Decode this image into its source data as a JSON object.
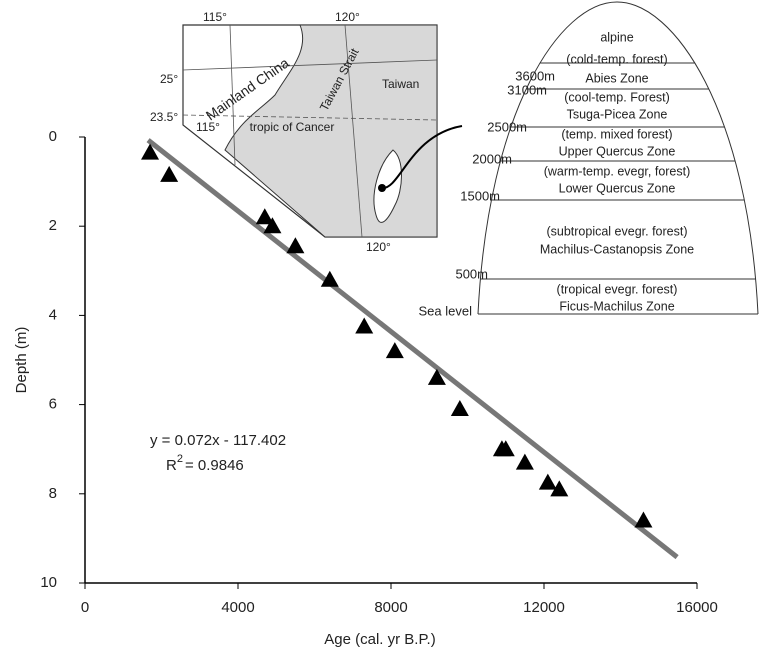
{
  "chart_data": {
    "type": "scatter",
    "xlabel": "Age (cal. yr B.P.)",
    "ylabel": "Depth (m)",
    "xlim": [
      0,
      16000
    ],
    "xticks": [
      0,
      4000,
      8000,
      12000,
      16000
    ],
    "ylim": [
      0,
      10
    ],
    "yticks": [
      0,
      2,
      4,
      6,
      8,
      10
    ],
    "y_inverted": true,
    "series": [
      {
        "color": "#000000",
        "marker": "triangle",
        "x": [
          1700,
          2200,
          4700,
          4900,
          5500,
          6400,
          7300,
          8100,
          9200,
          9800,
          10900,
          11000,
          11500,
          12100,
          12400,
          14600
        ],
        "values": [
          0.35,
          0.85,
          1.8,
          2.0,
          2.45,
          3.2,
          4.25,
          4.8,
          5.4,
          6.1,
          7.0,
          7.0,
          7.3,
          7.75,
          7.9,
          8.6
        ]
      },
      {
        "color": "#777777",
        "marker": "line",
        "x": [
          1650,
          15480
        ],
        "values": [
          0.07,
          9.42
        ]
      }
    ],
    "equation": "y = 0.072x - 117.402",
    "r2": {
      "text": "R",
      "sup": "2",
      "rest": "= 0.9846"
    }
  },
  "inset_map": {
    "labels": [
      "115°",
      "120°",
      "25°",
      "23.5°",
      "115°",
      "120°",
      "Mainland China",
      "Taiwan Strait",
      "Taiwan",
      "tropic of Cancer"
    ]
  },
  "zone_diagram": {
    "elevations": [
      "3600m",
      "3100m",
      "2500m",
      "2000m",
      "1500m",
      "500m",
      "Sea level"
    ],
    "zones": [
      [
        "alpine"
      ],
      [
        "(cold-temp. forest)",
        "Abies Zone"
      ],
      [
        "(cool-temp. Forest)",
        "Tsuga-Picea Zone"
      ],
      [
        "(temp. mixed forest)",
        "Upper Quercus Zone"
      ],
      [
        "(warm-temp. evegr, forest)",
        "Lower Quercus Zone"
      ],
      [
        "(subtropical evegr. forest)",
        "Machilus-Castanopsis Zone"
      ],
      [
        "(tropical evegr. forest)",
        "Ficus-Machilus Zone"
      ]
    ]
  }
}
